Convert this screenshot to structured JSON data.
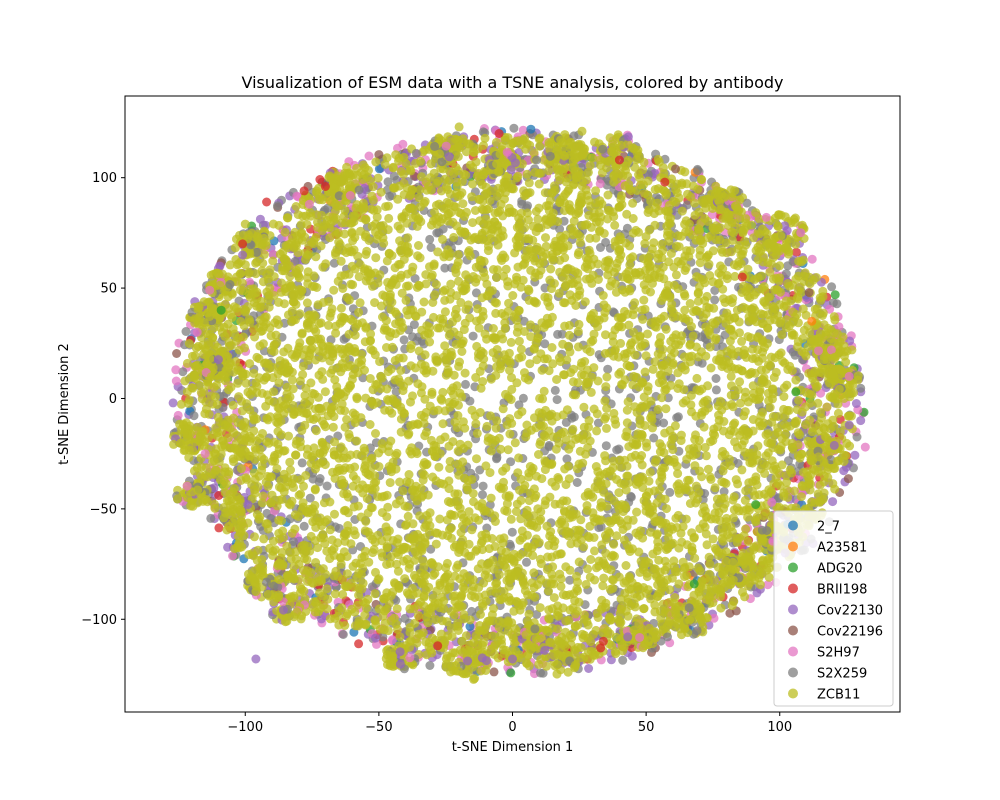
{
  "chart_data": {
    "type": "scatter",
    "title": "Visualization of ESM data with a TSNE analysis, colored by antibody",
    "xlabel": "t-SNE Dimension 1",
    "ylabel": "t-SNE Dimension 2",
    "xlim": [
      -145,
      145
    ],
    "ylim": [
      -142,
      137
    ],
    "xticks": [
      -100,
      -50,
      0,
      50,
      100
    ],
    "yticks": [
      -100,
      -50,
      0,
      50,
      100
    ],
    "xtick_labels": [
      "−100",
      "−50",
      "0",
      "50",
      "100"
    ],
    "ytick_labels": [
      "−100",
      "−50",
      "0",
      "50",
      "100"
    ],
    "grid": false,
    "legend_position": "lower right",
    "cloud_extent": {
      "x_range": [
        -128,
        132
      ],
      "y_range": [
        -125,
        123
      ],
      "center": [
        2,
        -1
      ]
    },
    "series": [
      {
        "name": "2_7",
        "color": "#1f77b4"
      },
      {
        "name": "A23581",
        "color": "#ff7f0e"
      },
      {
        "name": "ADG20",
        "color": "#2ca02c"
      },
      {
        "name": "BRII198",
        "color": "#d62728"
      },
      {
        "name": "Cov22130",
        "color": "#9467bd"
      },
      {
        "name": "Cov22196",
        "color": "#8c564b"
      },
      {
        "name": "S2H97",
        "color": "#e377c2"
      },
      {
        "name": "S2X259",
        "color": "#7f7f7f"
      },
      {
        "name": "ZCB11",
        "color": "#bcbd22"
      }
    ],
    "outlier_points": [
      {
        "series": 3,
        "x": -101,
        "y": 70
      },
      {
        "series": 3,
        "x": -92,
        "y": 89
      },
      {
        "series": 3,
        "x": -78,
        "y": 94
      },
      {
        "series": 3,
        "x": -70,
        "y": 96
      },
      {
        "series": 3,
        "x": -5,
        "y": 120
      },
      {
        "series": 3,
        "x": 40,
        "y": 108
      },
      {
        "series": 3,
        "x": 57,
        "y": 98
      },
      {
        "series": 3,
        "x": 86,
        "y": 55
      },
      {
        "series": 3,
        "x": -28,
        "y": -112
      },
      {
        "series": 3,
        "x": 34,
        "y": -110
      },
      {
        "series": 3,
        "x": 33,
        "y": -113
      },
      {
        "series": 4,
        "x": -127,
        "y": -2
      },
      {
        "series": 4,
        "x": -101,
        "y": 65
      },
      {
        "series": 4,
        "x": -99,
        "y": -48
      },
      {
        "series": 4,
        "x": -96,
        "y": -118
      },
      {
        "series": 4,
        "x": 0,
        "y": -118
      },
      {
        "series": 4,
        "x": 102,
        "y": -70
      },
      {
        "series": 4,
        "x": 126,
        "y": -12
      },
      {
        "series": 6,
        "x": -118,
        "y": 30
      },
      {
        "series": 6,
        "x": -115,
        "y": -25
      },
      {
        "series": 6,
        "x": -126,
        "y": 13
      },
      {
        "series": 6,
        "x": -76,
        "y": 88
      },
      {
        "series": 6,
        "x": 126,
        "y": 10
      },
      {
        "series": 6,
        "x": 132,
        "y": -22
      },
      {
        "series": 6,
        "x": 95,
        "y": 82
      },
      {
        "series": 6,
        "x": 97,
        "y": -47
      },
      {
        "series": 5,
        "x": 61,
        "y": 104
      },
      {
        "series": 5,
        "x": 111,
        "y": 48
      },
      {
        "series": 2,
        "x": 106,
        "y": 3
      },
      {
        "series": 2,
        "x": 91,
        "y": -48
      },
      {
        "series": 2,
        "x": 68,
        "y": -84
      },
      {
        "series": 2,
        "x": -109,
        "y": 40
      },
      {
        "series": 1,
        "x": 112,
        "y": 35
      },
      {
        "series": 0,
        "x": 103,
        "y": -57
      },
      {
        "series": 8,
        "x": -104,
        "y": -68
      },
      {
        "series": 8,
        "x": -100,
        "y": 79
      },
      {
        "series": 8,
        "x": -95,
        "y": -82
      },
      {
        "series": 8,
        "x": -20,
        "y": 123
      },
      {
        "series": 8,
        "x": 26,
        "y": 121
      },
      {
        "series": 8,
        "x": 127,
        "y": 22
      },
      {
        "series": 8,
        "x": 92,
        "y": -78
      },
      {
        "series": 7,
        "x": -36,
        "y": 111
      },
      {
        "series": 7,
        "x": 9,
        "y": 108
      },
      {
        "series": 7,
        "x": 58,
        "y": -108
      }
    ]
  }
}
